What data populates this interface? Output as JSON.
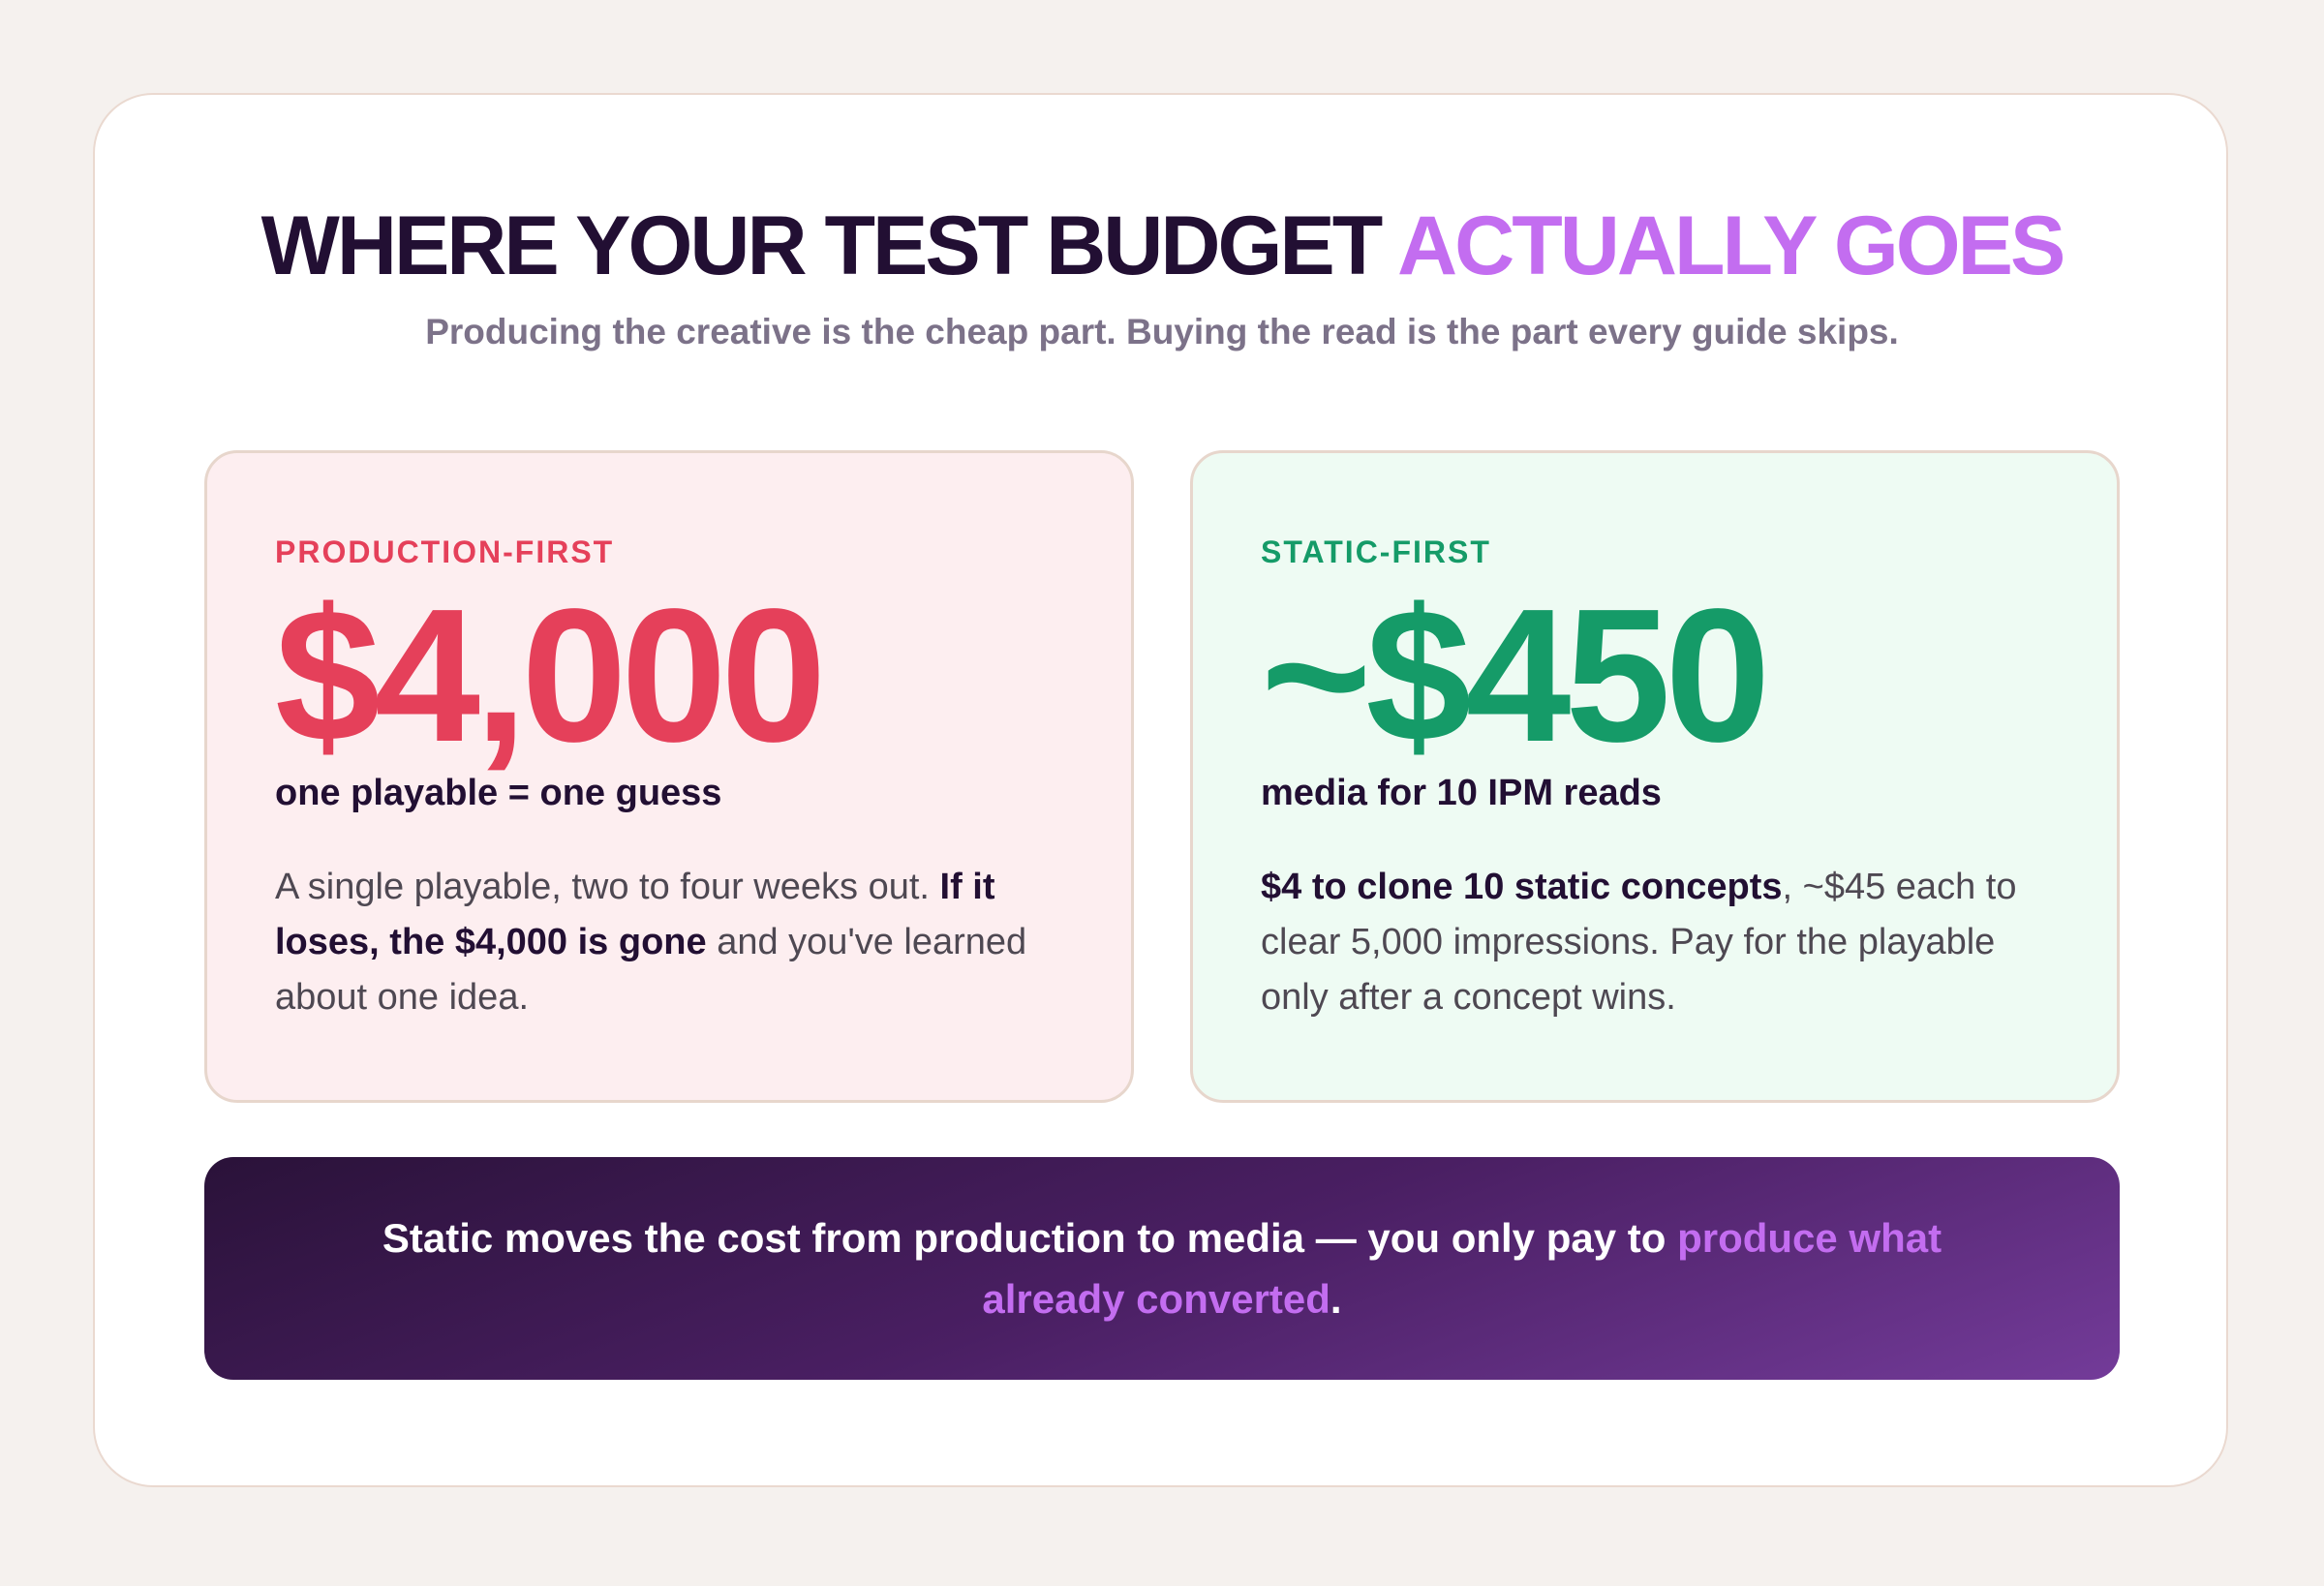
{
  "header": {
    "title_main": "WHERE YOUR TEST BUDGET",
    "title_accent": "ACTUALLY GOES",
    "subtitle": "Producing the creative is the cheap part. Buying the read is the part every guide skips."
  },
  "cards": [
    {
      "label": "PRODUCTION-FIRST",
      "amount": "$4,000",
      "caption": "one playable = one guess",
      "body": [
        "A single playable, two to four weeks out. ",
        "If it loses, the $4,000 is gone",
        " and you've learned about one idea."
      ]
    },
    {
      "label": "STATIC-FIRST",
      "amount": "~$450",
      "caption": "media for 10 IPM reads",
      "body": [
        "$4 to clone 10 static concepts",
        ", ~$45 each to clear 5,000 impressions. Pay for the playable only after a concept wins."
      ]
    }
  ],
  "banner": {
    "text": "Static moves the cost from production to media — you only pay to ",
    "highlight": "produce what already converted",
    "end": "."
  }
}
